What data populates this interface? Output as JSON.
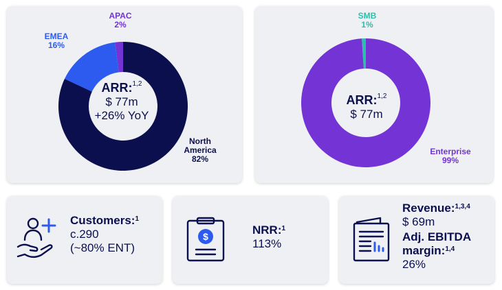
{
  "colors": {
    "navy": "#0b0f4d",
    "blue": "#2d5bf0",
    "purple": "#7433d4",
    "teal": "#2cbfa9",
    "card_bg": "#eef0f3"
  },
  "chart_data": [
    {
      "type": "pie",
      "variant": "donut",
      "slices": [
        {
          "name": "North America",
          "value": 82,
          "pct_label": "82%",
          "color": "#0b0f4d"
        },
        {
          "name": "EMEA",
          "value": 16,
          "pct_label": "16%",
          "color": "#2d5bf0"
        },
        {
          "name": "APAC",
          "value": 2,
          "pct_label": "2%",
          "color": "#7433d4"
        }
      ],
      "center": {
        "title": "ARR:",
        "sup": "1,2",
        "line1": "$ 77m",
        "line2": "+26% YoY"
      }
    },
    {
      "type": "pie",
      "variant": "donut",
      "slices": [
        {
          "name": "Enterprise",
          "value": 99,
          "pct_label": "99%",
          "color": "#7433d4"
        },
        {
          "name": "SMB",
          "value": 1,
          "pct_label": "1%",
          "color": "#2cbfa9"
        }
      ],
      "center": {
        "title": "ARR:",
        "sup": "1,2",
        "line1": "$ 77m"
      }
    }
  ],
  "kpis": {
    "customers": {
      "title": "Customers:",
      "sup": "1",
      "line1": "c.290",
      "line2": "(~80% ENT)",
      "icon": "customer-hand-icon"
    },
    "nrr": {
      "title": "NRR:",
      "sup": "1",
      "value": "113%",
      "icon": "dollar-clipboard-icon"
    },
    "revenue": {
      "title": "Revenue:",
      "sup": "1,3,4",
      "value": "$ 69m",
      "ebitda_title_1": "Adj. EBITDA",
      "ebitda_title_2": "margin:",
      "ebitda_sup": "1,4",
      "ebitda_value": "26%",
      "icon": "newspaper-report-icon"
    }
  }
}
